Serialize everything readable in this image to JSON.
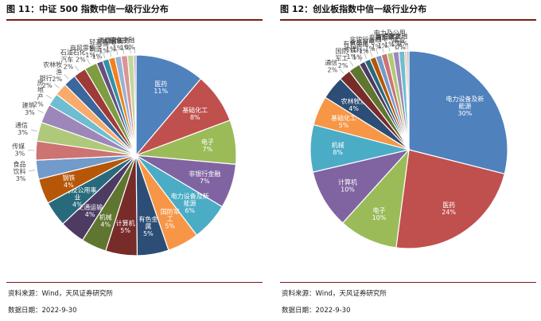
{
  "chart_data": [
    {
      "type": "pie",
      "title": "图 11：中证 500 指数中信一级行业分布",
      "categories": [
        "医药",
        "基础化工",
        "电子",
        "非银行金融",
        "电力设备及新能源",
        "国防军工",
        "有色金属",
        "计算机",
        "机械",
        "交通运输",
        "电力及公用事业",
        "钢铁",
        "食品饮料",
        "传媒",
        "通信",
        "建筑",
        "房地产",
        "银行",
        "农林牧渔",
        "汽车",
        "石油石化",
        "商贸零售",
        "轻工制造",
        "综合",
        "家电",
        "纺织服装",
        "消费者服务",
        "综合金融"
      ],
      "values": [
        11,
        8,
        7,
        7,
        6,
        5,
        5,
        5,
        4,
        4,
        4,
        4,
        3,
        3,
        3,
        3,
        2,
        2,
        2,
        2,
        2,
        1,
        1,
        1,
        1,
        1,
        1,
        0
      ],
      "labels": [
        "医药\n11%",
        "基础化工\n8%",
        "电子\n7%",
        "非银行金融\n7%",
        "电力设备及新\n能源\n6%",
        "国防军\n工\n5%",
        "有色金\n属\n5%",
        "计算机\n5%",
        "机械\n4%",
        "交通运输\n4%",
        "电力及公用事\n业\n4%",
        "钢铁\n4%",
        "食品\n饮料\n3%",
        "传媒\n3%",
        "通信\n3%",
        "建筑\n3%",
        "房\n地\n产\n2%",
        "银行\n2%",
        "农林牧\n渔\n2%",
        "汽车\n2%",
        "石油石化\n2%",
        "商贸零售\n1%",
        "轻工\n制造\n1%",
        "综合\n1%",
        "家电\n1%",
        "纺织服装\n1%",
        "消费者服务\n1%",
        "综合金融\n0%"
      ],
      "colors": [
        "#4f81bd",
        "#c0504d",
        "#9bbb59",
        "#8064a2",
        "#4bacc6",
        "#f79646",
        "#2c4d75",
        "#772c2a",
        "#5f7530",
        "#4d3b62",
        "#276a7c",
        "#b65708",
        "#729aca",
        "#cd7371",
        "#afc97a",
        "#9d87b8",
        "#6fbdd1",
        "#f9ab6b",
        "#3a679c",
        "#9e3b38",
        "#7e9c40",
        "#664f82",
        "#3590a8",
        "#f3801e",
        "#95b3d7",
        "#da9694",
        "#c3d69b",
        "#b1a0c7"
      ]
    },
    {
      "type": "pie",
      "title": "图 12：创业板指数中信一级行业分布",
      "categories": [
        "电力设备及新能源",
        "医药",
        "电子",
        "计算机",
        "机械",
        "基础化工",
        "农林牧渔",
        "通信",
        "国防军工",
        "传媒",
        "食品饮料",
        "有色金属",
        "家电",
        "非银行金融",
        "汽车",
        "交通运输",
        "纺织服装",
        "电力及公用事业",
        "综合金融"
      ],
      "values": [
        30,
        24,
        10,
        10,
        8,
        5,
        4,
        2,
        2,
        1,
        1,
        1,
        1,
        1,
        1,
        1,
        1,
        0,
        0
      ],
      "labels": [
        "电力设备及新\n能源\n30%",
        "医药\n24%",
        "电子\n10%",
        "计算机\n10%",
        "机械\n8%",
        "基础化工\n5%",
        "农林牧渔\n4%",
        "通信\n2%",
        "国防\n军工\n2%",
        "传媒\n1%",
        "食品\n饮料\n1%",
        "有色金属\n1%",
        "家电\n1%",
        "非银行金融\n1%",
        "汽车\n1%",
        "交通运输\n1%",
        "纺织服装\n1%",
        "电力及公用\n事业\n0%",
        "综合金融\n0%"
      ],
      "colors": [
        "#4f81bd",
        "#c0504d",
        "#9bbb59",
        "#8064a2",
        "#4bacc6",
        "#f79646",
        "#2c4d75",
        "#772c2a",
        "#5f7530",
        "#4d3b62",
        "#276a7c",
        "#b65708",
        "#729aca",
        "#cd7371",
        "#afc97a",
        "#9d87b8",
        "#6fbdd1",
        "#f9ab6b",
        "#95b3d7"
      ]
    }
  ],
  "footer": {
    "source": "资料来源：Wind，天风证券研究所",
    "date": "数据日期：2022-9-30"
  }
}
